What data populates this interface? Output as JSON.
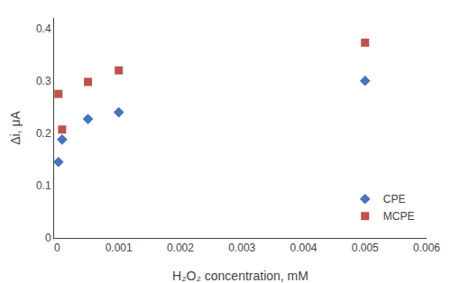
{
  "chart_data": {
    "type": "scatter",
    "xlabel": "H₂O₂ concentration, mM",
    "ylabel": "Δi, μA",
    "series": [
      {
        "name": "CPE",
        "color": "#4472C4",
        "marker": "diamond",
        "x": [
          2e-05,
          8e-05,
          0.0005,
          0.001,
          0.005
        ],
        "values": [
          0.145,
          0.188,
          0.227,
          0.24,
          0.3
        ]
      },
      {
        "name": "MCPE",
        "color": "#C0504D",
        "marker": "square",
        "x": [
          2e-05,
          8e-05,
          0.0005,
          0.001,
          0.005
        ],
        "values": [
          0.275,
          0.207,
          0.298,
          0.32,
          0.373
        ]
      }
    ],
    "xlim": [
      -5e-05,
      0.006
    ],
    "ylim": [
      0,
      0.42
    ],
    "xticks": [
      0,
      0.001,
      0.002,
      0.003,
      0.004,
      0.005,
      0.006
    ],
    "yticks": [
      0,
      0.1,
      0.2,
      0.3,
      0.4
    ],
    "grid": false,
    "legend": "lower right"
  }
}
